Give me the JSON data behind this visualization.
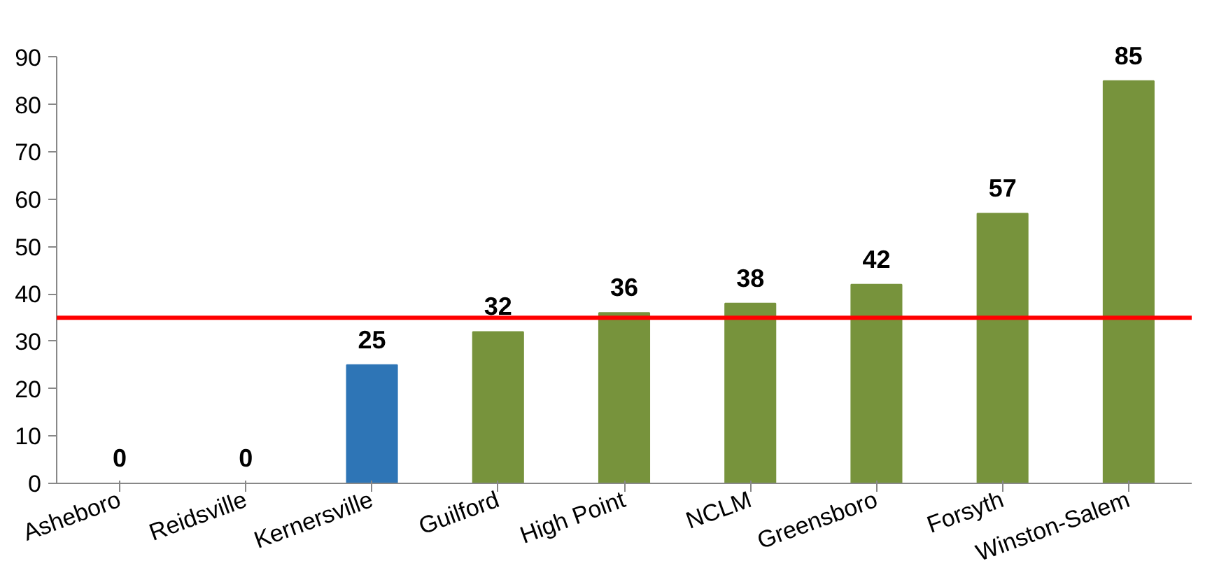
{
  "chart_data": {
    "type": "bar",
    "categories": [
      "Asheboro",
      "Reidsville",
      "Kernersville",
      "Guilford",
      "High Point",
      "NCLM",
      "Greensboro",
      "Forsyth",
      "Winston-Salem"
    ],
    "values": [
      0,
      0,
      25,
      32,
      36,
      38,
      42,
      57,
      85
    ],
    "colors": [
      "#77933c",
      "#77933c",
      "#2e75b6",
      "#77933c",
      "#77933c",
      "#77933c",
      "#77933c",
      "#77933c",
      "#77933c"
    ],
    "ylim": [
      0,
      90
    ],
    "yticks": [
      0,
      10,
      20,
      30,
      40,
      50,
      60,
      70,
      80,
      90
    ],
    "ref_lines": [
      {
        "axis": "y",
        "value": 35,
        "color": "#ff0000"
      }
    ],
    "data_labels": true,
    "grid": false
  }
}
